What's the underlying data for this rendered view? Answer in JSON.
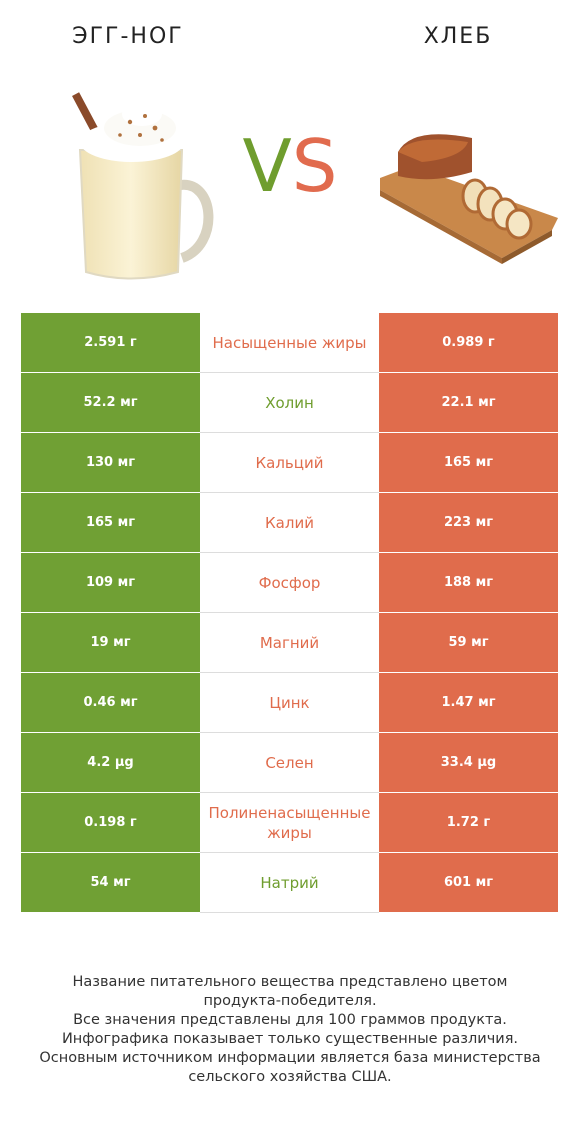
{
  "left_food": {
    "name": "ЭГГ-НОГ",
    "color": "#70a034"
  },
  "right_food": {
    "name": "ХЛЕБ",
    "color": "#e06c4c"
  },
  "vs": {
    "v": "V",
    "s": "S"
  },
  "chart_data": {
    "type": "table",
    "columns": [
      "ЭГГ-НОГ",
      "",
      "ХЛЕБ"
    ],
    "rows": [
      {
        "nutrient": "Насыщенные жиры",
        "left": "2.591 г",
        "right": "0.989 г",
        "winner": "right"
      },
      {
        "nutrient": "Холин",
        "left": "52.2 мг",
        "right": "22.1 мг",
        "winner": "left"
      },
      {
        "nutrient": "Кальций",
        "left": "130 мг",
        "right": "165 мг",
        "winner": "right"
      },
      {
        "nutrient": "Калий",
        "left": "165 мг",
        "right": "223 мг",
        "winner": "right"
      },
      {
        "nutrient": "Фосфор",
        "left": "109 мг",
        "right": "188 мг",
        "winner": "right"
      },
      {
        "nutrient": "Магний",
        "left": "19 мг",
        "right": "59 мг",
        "winner": "right"
      },
      {
        "nutrient": "Цинк",
        "left": "0.46 мг",
        "right": "1.47 мг",
        "winner": "right"
      },
      {
        "nutrient": "Селен",
        "left": "4.2 µg",
        "right": "33.4 µg",
        "winner": "right"
      },
      {
        "nutrient": "Полиненасыщенные жиры",
        "left": "0.198 г",
        "right": "1.72 г",
        "winner": "right"
      },
      {
        "nutrient": "Натрий",
        "left": "54 мг",
        "right": "601 мг",
        "winner": "left"
      }
    ]
  },
  "footer": {
    "lines": [
      "Название питательного вещества представлено цветом",
      "продукта-победителя.",
      "Все значения представлены для 100 граммов продукта.",
      "Инфографика показывает только существенные различия.",
      "Основным источником информации является база министерства",
      "сельского хозяйства США."
    ]
  }
}
